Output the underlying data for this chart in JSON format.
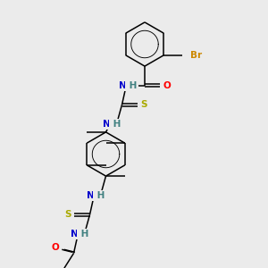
{
  "background_color": "#ebebeb",
  "figsize": [
    3.0,
    3.0
  ],
  "dpi": 100,
  "atoms": {
    "Br": {
      "color": "#cc8800",
      "fontsize": 7.5,
      "fontweight": "bold"
    },
    "O": {
      "color": "#ff0000",
      "fontsize": 7.5,
      "fontweight": "bold"
    },
    "N": {
      "color": "#0000cc",
      "fontsize": 7.5,
      "fontweight": "bold"
    },
    "H": {
      "color": "#408080",
      "fontsize": 7.5,
      "fontweight": "bold"
    },
    "S": {
      "color": "#aaaa00",
      "fontsize": 7.5,
      "fontweight": "bold"
    },
    "C": {
      "color": "#000000",
      "fontsize": 7.5,
      "fontweight": "bold"
    }
  },
  "bond_color": "#000000",
  "bond_lw": 1.1
}
